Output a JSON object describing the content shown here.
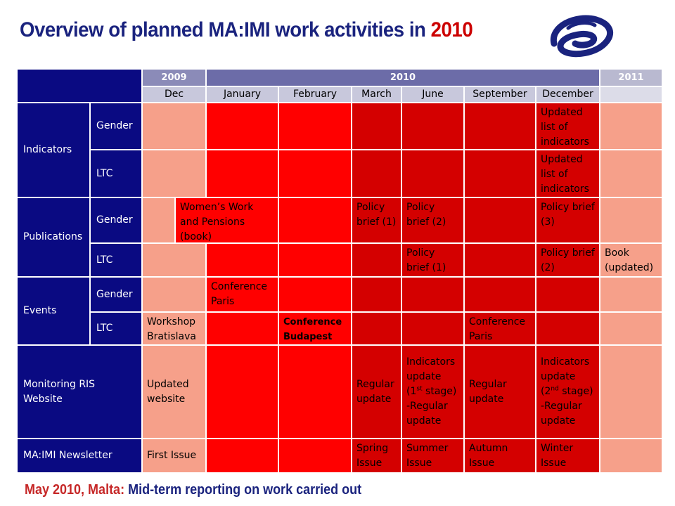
{
  "title": {
    "main": "Overview of planned MA:IMI work activities in ",
    "year": "2010"
  },
  "years": {
    "y2009": "2009",
    "y2010": "2010",
    "y2011": "2011"
  },
  "months": {
    "dec": "Dec",
    "jan": "January",
    "feb": "February",
    "mar": "March",
    "jun": "June",
    "sep": "September",
    "decfull": "December"
  },
  "categories": {
    "indicators": "Indicators",
    "publications": "Publications",
    "events": "Events",
    "monitoring": "Monitoring RIS Website",
    "newsletter": "MA:IMI Newsletter"
  },
  "sub": {
    "gender": "Gender",
    "ltc": "LTC"
  },
  "cells": {
    "ind_gender_dec": "Updated list of indicators",
    "ind_ltc_dec": "Updated list of indicators",
    "pub_gender_jan": "Women’s Work and Pensions (book)",
    "pub_gender_mar": "Policy brief (1)",
    "pub_gender_jun": "Policy brief (2)",
    "pub_gender_dec": "Policy brief (3)",
    "pub_ltc_jun": "Policy brief (1)",
    "pub_ltc_dec": "Policy brief (2)",
    "pub_ltc_2011": "Book (updated)",
    "ev_gender_jan": "Conference Paris",
    "ev_ltc_dec09": "Workshop Bratislava",
    "ev_ltc_feb": "Conference Budapest",
    "ev_ltc_sep": "Conference Paris",
    "mon_dec09": "Updated website",
    "mon_mar": "Regular update",
    "mon_jun_a": "Indicators update (1",
    "mon_jun_sup": "st",
    "mon_jun_b": " stage) -Regular update",
    "mon_sep": "Regular update",
    "mon_dec_a": "Indicators update (2",
    "mon_dec_sup": "nd",
    "mon_dec_b": " stage) -Regular update",
    "news_dec09": "First Issue",
    "news_mar": "Spring Issue",
    "news_jun": "Summer Issue",
    "news_sep": "Autumn Issue",
    "news_dec": "Winter Issue"
  },
  "footer": {
    "place": "May 2010, Malta:",
    "text": " Mid-term reporting on work carried out"
  },
  "colors": {
    "navy": "#0a0a82",
    "header": "#8b8bb8",
    "red": "#ff0000",
    "dark_red": "#d40000",
    "light_red": "#f6a08a"
  }
}
